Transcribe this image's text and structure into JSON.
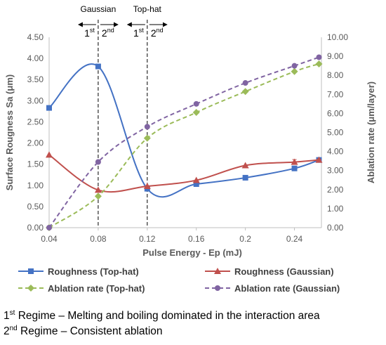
{
  "chart_data": {
    "type": "line",
    "xlabel": "Pulse Energy - Ep (mJ)",
    "ylabel_left": "Surface Rougness Sa (μm)",
    "ylabel_right": "Ablation rate (μm/layer)",
    "x_ticks": [
      0.04,
      0.08,
      0.12,
      0.16,
      0.2,
      0.24
    ],
    "x_tick_labels": [
      "0.04",
      "0.08",
      "0.12",
      "0.16",
      "0.2",
      "0.24"
    ],
    "xlim": [
      0.04,
      0.262
    ],
    "ylim_left": [
      0,
      4.5
    ],
    "y_left_ticks": [
      "0.00",
      "0.50",
      "1.00",
      "1.50",
      "2.00",
      "2.50",
      "3.00",
      "3.50",
      "4.00",
      "4.50"
    ],
    "ylim_right": [
      0,
      10
    ],
    "y_right_ticks": [
      "0.00",
      "1.00",
      "2.00",
      "3.00",
      "4.00",
      "5.00",
      "6.00",
      "7.00",
      "8.00",
      "9.00",
      "10.00"
    ],
    "grid": false,
    "legend_position": "bottom",
    "series": [
      {
        "name": "Roughness (Top-hat)",
        "axis": "left",
        "color": "#4472c4",
        "marker": "square",
        "dashed": false,
        "x": [
          0.04,
          0.08,
          0.12,
          0.16,
          0.2,
          0.24,
          0.26
        ],
        "y": [
          2.83,
          3.81,
          0.92,
          1.03,
          1.18,
          1.4,
          1.6
        ],
        "error": [
          0,
          0,
          0,
          0,
          0,
          0.04,
          0.02
        ]
      },
      {
        "name": "Roughness (Gaussian)",
        "axis": "left",
        "color": "#c0504d",
        "marker": "triangle",
        "dashed": false,
        "x": [
          0.04,
          0.08,
          0.12,
          0.16,
          0.2,
          0.24,
          0.26
        ],
        "y": [
          1.72,
          0.89,
          0.98,
          1.12,
          1.47,
          1.55,
          1.6
        ],
        "error": [
          0,
          0,
          0,
          0,
          0,
          0.06,
          0.02
        ]
      },
      {
        "name": "Ablation rate (Top-hat)",
        "axis": "right",
        "color": "#9bbb59",
        "marker": "diamond",
        "dashed": true,
        "x": [
          0.04,
          0.08,
          0.12,
          0.16,
          0.2,
          0.24,
          0.26
        ],
        "y": [
          0.0,
          1.65,
          4.7,
          6.05,
          7.15,
          8.2,
          8.6
        ]
      },
      {
        "name": "Ablation rate (Gaussian)",
        "axis": "right",
        "color": "#8064a2",
        "marker": "circle",
        "dashed": true,
        "x": [
          0.04,
          0.08,
          0.12,
          0.16,
          0.2,
          0.24,
          0.26
        ],
        "y": [
          0.0,
          3.45,
          5.3,
          6.5,
          7.6,
          8.5,
          8.95
        ]
      }
    ],
    "regions": [
      {
        "label": "Gaussian",
        "x": 0.08,
        "left_phase": "1st",
        "right_phase": "2nd"
      },
      {
        "label": "Top-hat",
        "x": 0.12,
        "left_phase": "1st",
        "right_phase": "2nd"
      }
    ]
  },
  "notes": [
    {
      "sup": "st",
      "prefix": "1",
      "text": " Regime – Melting and boiling dominated in the interaction area"
    },
    {
      "sup": "nd",
      "prefix": "2",
      "text": " Regime – Consistent ablation"
    }
  ]
}
